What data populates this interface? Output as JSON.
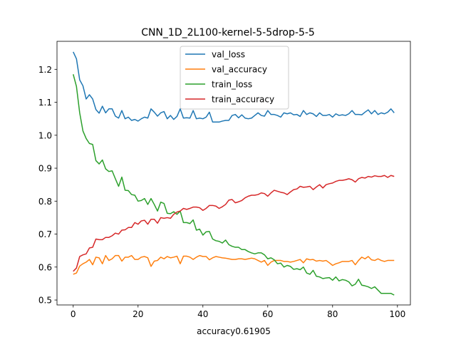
{
  "chart_data": {
    "type": "line",
    "title": "CNN_1D_2L100-kernel-5-5drop-5-5",
    "xlabel": "accuracy0.61905",
    "ylabel": "",
    "xlim": [
      -5,
      104
    ],
    "ylim": [
      0.485,
      1.285
    ],
    "xticks": [
      0,
      20,
      40,
      60,
      80,
      100
    ],
    "yticks": [
      0.5,
      0.6,
      0.7,
      0.8,
      0.9,
      1.0,
      1.1,
      1.2
    ],
    "grid": false,
    "legend_position": "top-center",
    "x": [
      0,
      1,
      2,
      3,
      4,
      5,
      6,
      7,
      8,
      9,
      10,
      11,
      12,
      13,
      14,
      15,
      16,
      17,
      18,
      19,
      20,
      21,
      22,
      23,
      24,
      25,
      26,
      27,
      28,
      29,
      30,
      31,
      32,
      33,
      34,
      35,
      36,
      37,
      38,
      39,
      40,
      41,
      42,
      43,
      44,
      45,
      46,
      47,
      48,
      49,
      50,
      51,
      52,
      53,
      54,
      55,
      56,
      57,
      58,
      59,
      60,
      61,
      62,
      63,
      64,
      65,
      66,
      67,
      68,
      69,
      70,
      71,
      72,
      73,
      74,
      75,
      76,
      77,
      78,
      79,
      80,
      81,
      82,
      83,
      84,
      85,
      86,
      87,
      88,
      89,
      90,
      91,
      92,
      93,
      94,
      95,
      96,
      97,
      98,
      99
    ],
    "series": [
      {
        "name": "val_loss",
        "color": "#1f77b4",
        "values": [
          1.253,
          1.232,
          1.168,
          1.15,
          1.11,
          1.123,
          1.11,
          1.078,
          1.067,
          1.088,
          1.068,
          1.08,
          1.08,
          1.058,
          1.052,
          1.075,
          1.05,
          1.055,
          1.045,
          1.048,
          1.043,
          1.05,
          1.055,
          1.052,
          1.08,
          1.07,
          1.058,
          1.068,
          1.072,
          1.05,
          1.06,
          1.048,
          1.057,
          1.08,
          1.052,
          1.053,
          1.052,
          1.075,
          1.05,
          1.052,
          1.05,
          1.055,
          1.07,
          1.04,
          1.04,
          1.04,
          1.043,
          1.045,
          1.045,
          1.06,
          1.063,
          1.053,
          1.062,
          1.052,
          1.05,
          1.052,
          1.06,
          1.068,
          1.06,
          1.058,
          1.075,
          1.063,
          1.063,
          1.06,
          1.055,
          1.068,
          1.065,
          1.068,
          1.062,
          1.063,
          1.057,
          1.075,
          1.063,
          1.068,
          1.065,
          1.057,
          1.068,
          1.06,
          1.06,
          1.063,
          1.055,
          1.065,
          1.06,
          1.062,
          1.06,
          1.065,
          1.075,
          1.063,
          1.063,
          1.062,
          1.07,
          1.077,
          1.065,
          1.075,
          1.063,
          1.068,
          1.065,
          1.07,
          1.08,
          1.068
        ]
      },
      {
        "name": "val_accuracy",
        "color": "#ff7f0e",
        "values": [
          0.578,
          0.582,
          0.603,
          0.61,
          0.615,
          0.623,
          0.607,
          0.63,
          0.628,
          0.61,
          0.635,
          0.62,
          0.625,
          0.635,
          0.635,
          0.618,
          0.63,
          0.63,
          0.635,
          0.623,
          0.623,
          0.63,
          0.632,
          0.628,
          0.602,
          0.618,
          0.62,
          0.63,
          0.625,
          0.632,
          0.628,
          0.63,
          0.633,
          0.61,
          0.633,
          0.633,
          0.63,
          0.623,
          0.63,
          0.635,
          0.632,
          0.632,
          0.622,
          0.628,
          0.632,
          0.63,
          0.628,
          0.627,
          0.625,
          0.623,
          0.623,
          0.625,
          0.625,
          0.623,
          0.625,
          0.627,
          0.625,
          0.62,
          0.615,
          0.62,
          0.605,
          0.615,
          0.62,
          0.62,
          0.62,
          0.617,
          0.617,
          0.615,
          0.617,
          0.62,
          0.623,
          0.613,
          0.625,
          0.622,
          0.623,
          0.618,
          0.62,
          0.618,
          0.62,
          0.613,
          0.605,
          0.61,
          0.613,
          0.617,
          0.617,
          0.617,
          0.62,
          0.607,
          0.62,
          0.63,
          0.625,
          0.632,
          0.622,
          0.62,
          0.625,
          0.62,
          0.617,
          0.62,
          0.62,
          0.62
        ]
      },
      {
        "name": "train_loss",
        "color": "#2ca02c",
        "values": [
          1.185,
          1.148,
          1.068,
          1.013,
          0.99,
          0.975,
          0.972,
          0.923,
          0.913,
          0.925,
          0.898,
          0.89,
          0.892,
          0.868,
          0.845,
          0.873,
          0.833,
          0.832,
          0.82,
          0.818,
          0.8,
          0.802,
          0.808,
          0.79,
          0.808,
          0.79,
          0.77,
          0.797,
          0.793,
          0.763,
          0.762,
          0.768,
          0.76,
          0.77,
          0.735,
          0.735,
          0.732,
          0.743,
          0.712,
          0.715,
          0.697,
          0.707,
          0.708,
          0.685,
          0.68,
          0.678,
          0.673,
          0.682,
          0.668,
          0.663,
          0.66,
          0.66,
          0.653,
          0.653,
          0.647,
          0.643,
          0.64,
          0.643,
          0.643,
          0.637,
          0.625,
          0.628,
          0.622,
          0.61,
          0.612,
          0.6,
          0.605,
          0.602,
          0.593,
          0.595,
          0.592,
          0.6,
          0.582,
          0.578,
          0.59,
          0.572,
          0.57,
          0.565,
          0.567,
          0.568,
          0.56,
          0.57,
          0.558,
          0.562,
          0.56,
          0.555,
          0.543,
          0.548,
          0.563,
          0.545,
          0.543,
          0.54,
          0.535,
          0.54,
          0.53,
          0.52,
          0.52,
          0.52,
          0.52,
          0.515
        ]
      },
      {
        "name": "train_accuracy",
        "color": "#d62728",
        "values": [
          0.587,
          0.597,
          0.632,
          0.637,
          0.64,
          0.658,
          0.66,
          0.685,
          0.683,
          0.683,
          0.69,
          0.69,
          0.695,
          0.703,
          0.7,
          0.712,
          0.713,
          0.72,
          0.72,
          0.735,
          0.73,
          0.74,
          0.742,
          0.73,
          0.745,
          0.745,
          0.733,
          0.75,
          0.748,
          0.75,
          0.748,
          0.76,
          0.767,
          0.77,
          0.778,
          0.775,
          0.778,
          0.782,
          0.782,
          0.78,
          0.772,
          0.778,
          0.787,
          0.787,
          0.785,
          0.778,
          0.783,
          0.79,
          0.803,
          0.805,
          0.795,
          0.798,
          0.802,
          0.81,
          0.815,
          0.818,
          0.818,
          0.82,
          0.825,
          0.823,
          0.815,
          0.825,
          0.833,
          0.83,
          0.827,
          0.825,
          0.82,
          0.828,
          0.835,
          0.837,
          0.845,
          0.842,
          0.843,
          0.845,
          0.835,
          0.843,
          0.85,
          0.84,
          0.85,
          0.853,
          0.855,
          0.86,
          0.863,
          0.863,
          0.865,
          0.868,
          0.865,
          0.858,
          0.868,
          0.872,
          0.87,
          0.875,
          0.873,
          0.877,
          0.875,
          0.875,
          0.878,
          0.872,
          0.878,
          0.875
        ]
      }
    ]
  }
}
